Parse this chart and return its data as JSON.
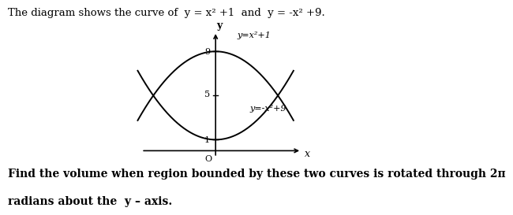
{
  "title_text": "The diagram shows the curve of  y = x² +1  and  y = -x² +9.",
  "bottom_text1": "Find the volume when region bounded by these two curves is rotated through 2π",
  "bottom_text2": "radians about the  y – axis.",
  "background_color": "#ffffff",
  "curve1_label": "y=x²+1",
  "curve2_label": "y=-x²+9",
  "x_label": "x",
  "y_label": "y",
  "origin_label": "O",
  "y_tick_1": "1",
  "y_tick_5": "5",
  "y_tick_9": "9",
  "xlim": [
    -2.8,
    3.0
  ],
  "ylim": [
    -1.2,
    12.0
  ],
  "figsize": [
    6.36,
    2.72
  ],
  "dpi": 100,
  "axis_color": "#000000",
  "curve_color": "#000000",
  "text_color": "#000000",
  "font_size_title": 9.5,
  "font_size_label": 8,
  "font_size_tick": 8,
  "font_size_bottom": 10
}
